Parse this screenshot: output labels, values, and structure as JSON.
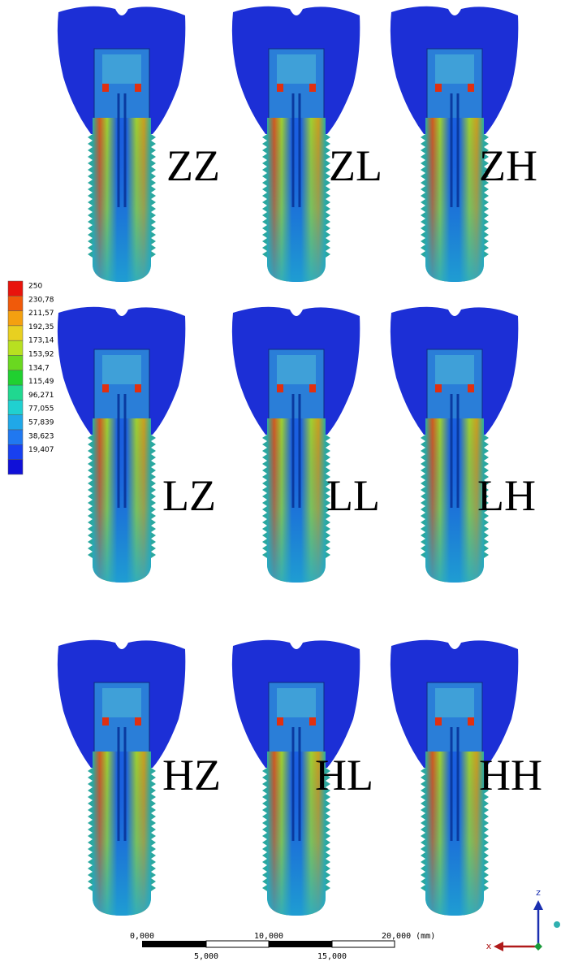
{
  "legend": {
    "labels": [
      "250",
      "230,78",
      "211,57",
      "192,35",
      "173,14",
      "153,92",
      "134,7",
      "115,49",
      "96,271",
      "77,055",
      "57,839",
      "38,623",
      "19,407"
    ]
  },
  "models": [
    {
      "label": "ZZ"
    },
    {
      "label": "ZL"
    },
    {
      "label": "ZH"
    },
    {
      "label": "LZ"
    },
    {
      "label": "LL"
    },
    {
      "label": "LH"
    },
    {
      "label": "HZ"
    },
    {
      "label": "HL"
    },
    {
      "label": "HH"
    }
  ],
  "scale_bar": {
    "top_labels": [
      "0,000",
      "10,000",
      "20,000 (mm)"
    ],
    "bottom_labels": [
      "5,000",
      "15,000"
    ]
  },
  "axes": {
    "z": "z",
    "x": "x"
  }
}
